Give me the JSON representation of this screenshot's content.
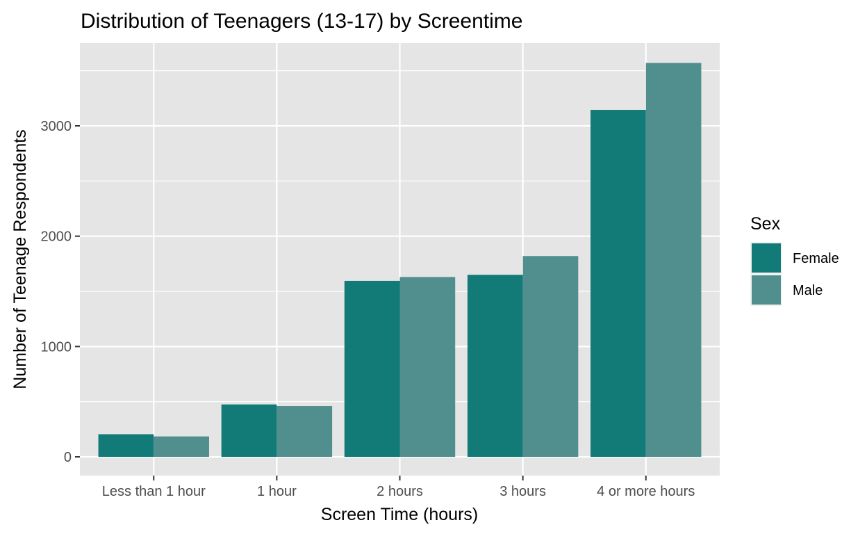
{
  "chart_data": {
    "type": "bar",
    "title": "Distribution of Teenagers (13-17) by Screentime",
    "xlabel": "Screen Time (hours)",
    "ylabel": "Number of Teenage Respondents",
    "categories": [
      "Less than 1 hour",
      "1 hour",
      "2 hours",
      "3 hours",
      "4 or more hours"
    ],
    "series": [
      {
        "name": "Female",
        "color": "#127b78",
        "values": [
          205,
          475,
          1595,
          1650,
          3145
        ]
      },
      {
        "name": "Male",
        "color": "#518e8e",
        "values": [
          185,
          460,
          1630,
          1820,
          3570
        ]
      }
    ],
    "ylim": [
      -170,
      3750
    ],
    "yticks": [
      0,
      1000,
      2000,
      3000
    ],
    "ytick_labels": [
      "0",
      "1000",
      "2000",
      "3000"
    ],
    "grid": true,
    "legend": {
      "title": "Sex",
      "position": "right"
    },
    "panel_color": "#e5e5e5"
  }
}
